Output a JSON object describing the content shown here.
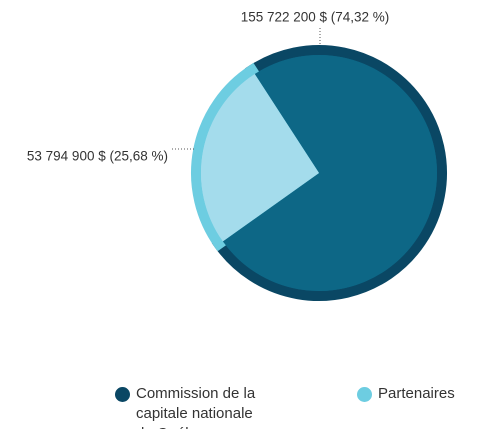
{
  "chart_data": {
    "type": "pie",
    "categories": [
      "Commission de la capitale nationale du Québec",
      "Partenaires"
    ],
    "values": [
      155722200,
      53794900
    ],
    "value_labels": [
      "155 722 200 $ (74,32 %)",
      "53 794 900 $ (25,68 %)"
    ],
    "colors": [
      "#0d6786",
      "#a4dcec"
    ],
    "legend": "bottom"
  }
}
